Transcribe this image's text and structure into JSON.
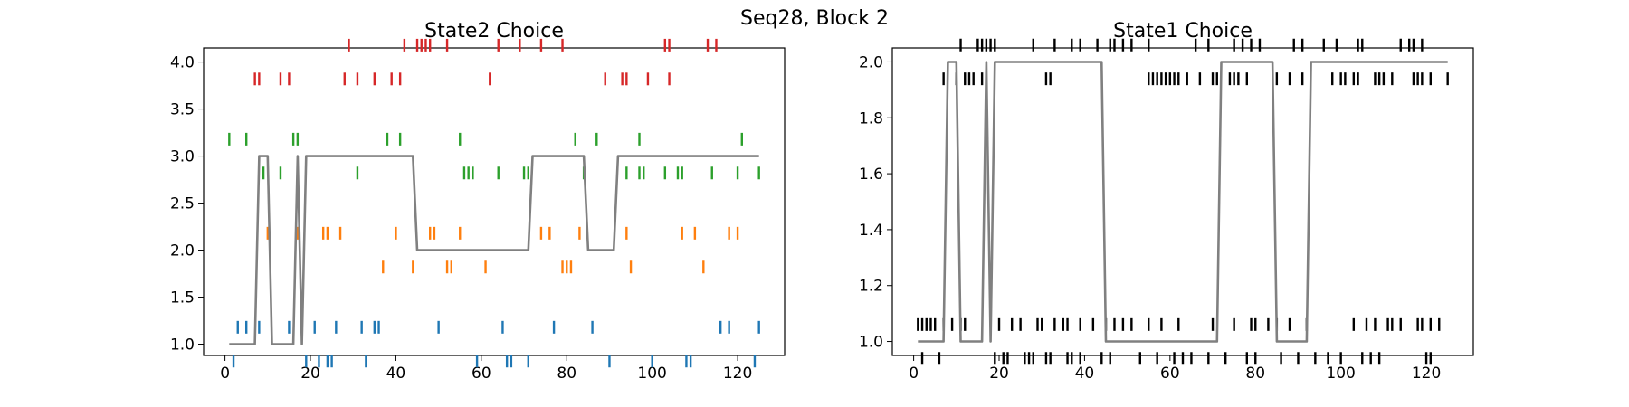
{
  "figure": {
    "suptitle": "Seq28, Block 2"
  },
  "chart_data": [
    {
      "type": "scatter",
      "title": "State2 Choice",
      "xlabel": "",
      "ylabel": "",
      "xlim": [
        -5,
        131
      ],
      "ylim": [
        0.88,
        4.15
      ],
      "xticks": [
        0,
        20,
        40,
        60,
        80,
        100,
        120
      ],
      "yticks": [
        1.0,
        1.5,
        2.0,
        2.5,
        3.0,
        3.5,
        4.0
      ],
      "ytick_format": 1,
      "grid": false,
      "legend": "none",
      "step_color": "#808080",
      "step": {
        "x": [
          1,
          7,
          8,
          10,
          11,
          16,
          17,
          18,
          19,
          44,
          45,
          71,
          72,
          84,
          85,
          91,
          92,
          125
        ],
        "y": [
          1,
          1,
          3,
          3,
          1,
          1,
          3,
          1,
          3,
          3,
          2,
          2,
          3,
          3,
          2,
          2,
          3,
          3
        ]
      },
      "series": [
        {
          "level": 1,
          "color": "#1f77b4",
          "above": [
            3,
            5,
            8,
            15,
            18,
            21,
            26,
            32,
            35,
            36,
            50,
            65,
            77,
            86,
            116,
            118,
            125
          ],
          "below": [
            2,
            19,
            22,
            24,
            25,
            33,
            59,
            66,
            67,
            71,
            90,
            100,
            108,
            109,
            124
          ]
        },
        {
          "level": 2,
          "color": "#ff7f0e",
          "above": [
            10,
            17,
            23,
            24,
            27,
            40,
            48,
            49,
            55,
            74,
            76,
            83,
            94,
            107,
            110,
            118,
            120
          ],
          "below": [
            37,
            44,
            52,
            53,
            61,
            79,
            80,
            81,
            95,
            112
          ]
        },
        {
          "level": 3,
          "color": "#2ca02c",
          "above": [
            1,
            5,
            16,
            17,
            38,
            41,
            55,
            82,
            87,
            97,
            121
          ],
          "below": [
            9,
            13,
            31,
            56,
            57,
            58,
            64,
            70,
            71,
            84,
            94,
            97,
            98,
            103,
            106,
            107,
            114,
            120,
            125
          ]
        },
        {
          "level": 4,
          "color": "#d62728",
          "above": [
            29,
            42,
            45,
            46,
            47,
            48,
            52,
            64,
            69,
            74,
            79,
            103,
            104,
            113,
            115
          ],
          "below": [
            7,
            8,
            13,
            15,
            28,
            31,
            35,
            39,
            41,
            62,
            89,
            93,
            94,
            99,
            104
          ]
        }
      ]
    },
    {
      "type": "scatter",
      "title": "State1 Choice",
      "xlabel": "",
      "ylabel": "",
      "xlim": [
        -5,
        131
      ],
      "ylim": [
        0.95,
        2.05
      ],
      "xticks": [
        0,
        20,
        40,
        60,
        80,
        100,
        120
      ],
      "yticks": [
        1.0,
        1.2,
        1.4,
        1.6,
        1.8,
        2.0
      ],
      "ytick_format": 1,
      "grid": false,
      "legend": "none",
      "step_color": "#808080",
      "step": {
        "x": [
          1,
          7,
          8,
          10,
          11,
          16,
          17,
          18,
          19,
          44,
          45,
          71,
          72,
          84,
          85,
          92,
          93,
          125
        ],
        "y": [
          1,
          1,
          2,
          2,
          1,
          1,
          2,
          1,
          2,
          2,
          1,
          1,
          2,
          2,
          1,
          1,
          2,
          2
        ]
      },
      "series": [
        {
          "level": 1,
          "color": "#000000",
          "above": [
            1,
            2,
            3,
            4,
            5,
            7,
            9,
            11,
            12,
            20,
            23,
            25,
            29,
            30,
            33,
            35,
            36,
            39,
            42,
            45,
            47,
            49,
            51,
            55,
            58,
            62,
            70,
            75,
            79,
            80,
            83,
            85,
            88,
            92,
            103,
            106,
            108,
            111,
            112,
            114,
            118,
            119,
            121,
            123
          ],
          "below": [
            2,
            6,
            19,
            21,
            22,
            26,
            27,
            28,
            31,
            32,
            36,
            37,
            39,
            44,
            46,
            53,
            57,
            61,
            63,
            65,
            69,
            73,
            78,
            80,
            86,
            90,
            94,
            97,
            100,
            105,
            107,
            109,
            120,
            121
          ]
        },
        {
          "level": 2,
          "color": "#000000",
          "above": [
            11,
            15,
            16,
            17,
            18,
            19,
            28,
            33,
            37,
            39,
            43,
            46,
            47,
            49,
            51,
            55,
            66,
            69,
            75,
            77,
            79,
            81,
            89,
            91,
            96,
            99,
            104,
            105,
            114,
            116,
            117,
            119
          ],
          "below": [
            7,
            10,
            12,
            13,
            14,
            16,
            31,
            32,
            55,
            56,
            57,
            58,
            59,
            60,
            61,
            62,
            64,
            67,
            70,
            71,
            74,
            75,
            76,
            78,
            85,
            88,
            91,
            98,
            100,
            101,
            103,
            104,
            108,
            109,
            110,
            112,
            117,
            118,
            119,
            121,
            125
          ]
        }
      ]
    }
  ]
}
